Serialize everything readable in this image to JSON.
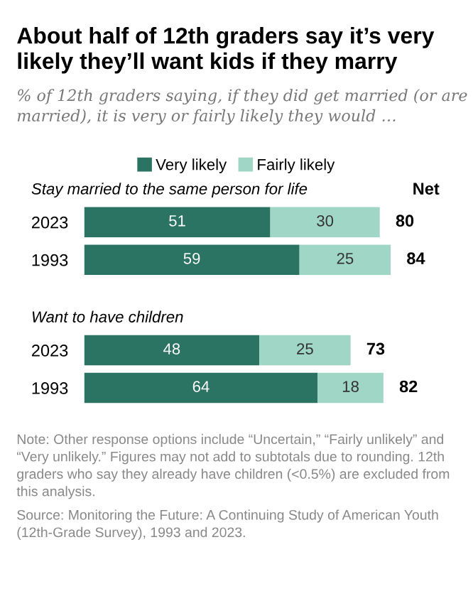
{
  "chart_data": {
    "type": "bar",
    "orientation": "horizontal",
    "stacked": true,
    "title": "About half of 12th graders say it’s very likely they’ll want kids if they marry",
    "subtitle": "% of 12th graders saying, if they did get married (or are married), it is very or fairly likely they would …",
    "categories": [
      "2023",
      "1993",
      "2023",
      "1993"
    ],
    "series": [
      {
        "name": "Very likely",
        "color": "#2b7463",
        "values": [
          51,
          59,
          48,
          64
        ]
      },
      {
        "name": "Fairly likely",
        "color": "#9fd6c6",
        "values": [
          30,
          25,
          25,
          18
        ]
      }
    ],
    "totals": [
      "80",
      "84",
      "73",
      "82"
    ],
    "data_labels": true,
    "legend": "top",
    "annotations": [
      "Stay married to the same person for life",
      "Want to have children",
      "Net",
      "Note: Other response options include “Uncertain,” “Fairly unlikely” and “Very unlikely.” Figures may not add to subtotals due to rounding. 12th graders who say they already have children (<0.5%) are excluded from this analysis.",
      "Source: Monitoring the Future: A Continuing Study of American Youth (12th-Grade Survey), 1993 and 2023."
    ]
  }
}
